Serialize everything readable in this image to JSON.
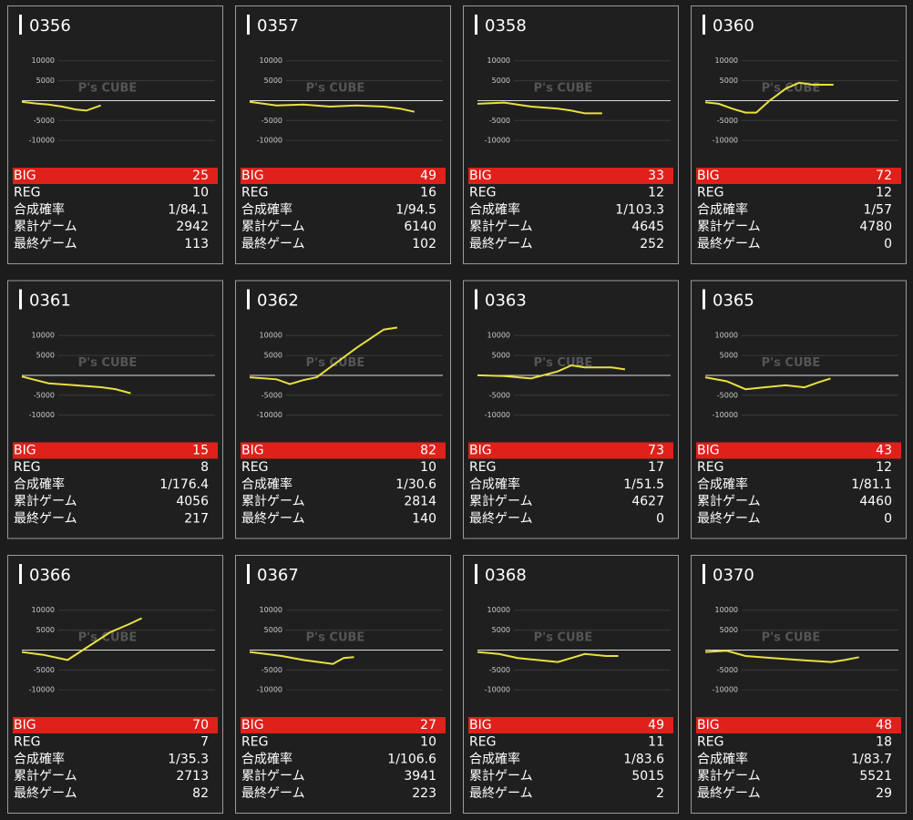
{
  "labels": {
    "big": "BIG",
    "reg": "REG",
    "prob": "合成確率",
    "total": "累計ゲーム",
    "last": "最終ゲーム"
  },
  "watermark": "P's CUBE",
  "chart": {
    "type": "line",
    "xlim": [
      0,
      7200
    ],
    "ylim": [
      -15000,
      12000
    ],
    "yticks": [
      10000,
      5000,
      -5000,
      -10000
    ],
    "color": "#e8e040"
  },
  "panels": [
    {
      "id": "0356",
      "big": 25,
      "reg": 10,
      "prob": "1/84.1",
      "total": 2942,
      "last": 113,
      "x": [
        0,
        500,
        1000,
        1500,
        2000,
        2400,
        2942
      ],
      "values": [
        -300,
        -700,
        -1000,
        -1500,
        -2200,
        -2500,
        -1200
      ]
    },
    {
      "id": "0357",
      "big": 49,
      "reg": 16,
      "prob": "1/94.5",
      "total": 6140,
      "last": 102,
      "x": [
        0,
        1000,
        2000,
        3000,
        4000,
        5000,
        5600,
        6140
      ],
      "values": [
        -300,
        -1200,
        -1000,
        -1500,
        -1200,
        -1500,
        -2000,
        -2800
      ]
    },
    {
      "id": "0358",
      "big": 33,
      "reg": 12,
      "prob": "1/103.3",
      "total": 4645,
      "last": 252,
      "x": [
        0,
        1000,
        2000,
        3000,
        3500,
        4000,
        4645
      ],
      "values": [
        -800,
        -500,
        -1500,
        -2000,
        -2500,
        -3200,
        -3200
      ]
    },
    {
      "id": "0360",
      "big": 72,
      "reg": 12,
      "prob": "1/57",
      "total": 4780,
      "last": 0,
      "x": [
        0,
        500,
        1000,
        1500,
        1900,
        2400,
        3000,
        3500,
        4000,
        4780
      ],
      "values": [
        -400,
        -800,
        -2000,
        -3000,
        -3000,
        0,
        3000,
        4500,
        4000,
        4000
      ]
    },
    {
      "id": "0361",
      "big": 15,
      "reg": 8,
      "prob": "1/176.4",
      "total": 4056,
      "last": 217,
      "x": [
        0,
        1000,
        2000,
        3000,
        3500,
        4056
      ],
      "values": [
        -300,
        -2000,
        -2500,
        -3000,
        -3500,
        -4500
      ]
    },
    {
      "id": "0362",
      "big": 82,
      "reg": 10,
      "prob": "1/30.6",
      "total": 2814,
      "last": 140,
      "x": [
        0,
        1000,
        1500,
        2000,
        2500,
        3000,
        4000,
        5000,
        5500
      ],
      "values": [
        -500,
        -1000,
        -2200,
        -1200,
        -500,
        2000,
        7000,
        11500,
        12000
      ]
    },
    {
      "id": "0363",
      "big": 73,
      "reg": 17,
      "prob": "1/51.5",
      "total": 4627,
      "last": 0,
      "x": [
        0,
        1000,
        2000,
        3000,
        3500,
        4000,
        5000,
        5500
      ],
      "values": [
        0,
        -200,
        -800,
        1000,
        2500,
        2000,
        2000,
        1500
      ]
    },
    {
      "id": "0365",
      "big": 43,
      "reg": 12,
      "prob": "1/81.1",
      "total": 4460,
      "last": 0,
      "x": [
        0,
        800,
        1500,
        2200,
        3000,
        3700,
        4200,
        4670
      ],
      "values": [
        -500,
        -1500,
        -3500,
        -3000,
        -2500,
        -3000,
        -1800,
        -800
      ]
    },
    {
      "id": "0366",
      "big": 70,
      "reg": 7,
      "prob": "1/35.3",
      "total": 2713,
      "last": 82,
      "x": [
        0,
        800,
        1700,
        2500,
        3300,
        4000,
        4470
      ],
      "values": [
        -500,
        -1200,
        -2500,
        1000,
        4500,
        6500,
        8000
      ]
    },
    {
      "id": "0367",
      "big": 27,
      "reg": 10,
      "prob": "1/106.6",
      "total": 3941,
      "last": 223,
      "x": [
        0,
        600,
        1200,
        2000,
        3100,
        3500,
        3890
      ],
      "values": [
        -500,
        -1000,
        -1500,
        -2500,
        -3500,
        -2000,
        -1800
      ]
    },
    {
      "id": "0368",
      "big": 49,
      "reg": 11,
      "prob": "1/83.6",
      "total": 5015,
      "last": 2,
      "x": [
        0,
        800,
        1500,
        3000,
        3500,
        4000,
        4800,
        5250
      ],
      "values": [
        -500,
        -1000,
        -2000,
        -3000,
        -2000,
        -1000,
        -1500,
        -1500
      ]
    },
    {
      "id": "0370",
      "big": 48,
      "reg": 18,
      "prob": "1/83.7",
      "total": 5521,
      "last": 29,
      "x": [
        0,
        800,
        1500,
        2500,
        3500,
        4700,
        5200,
        5730
      ],
      "values": [
        -500,
        -200,
        -1500,
        -2000,
        -2500,
        -3000,
        -2500,
        -1800
      ]
    }
  ]
}
